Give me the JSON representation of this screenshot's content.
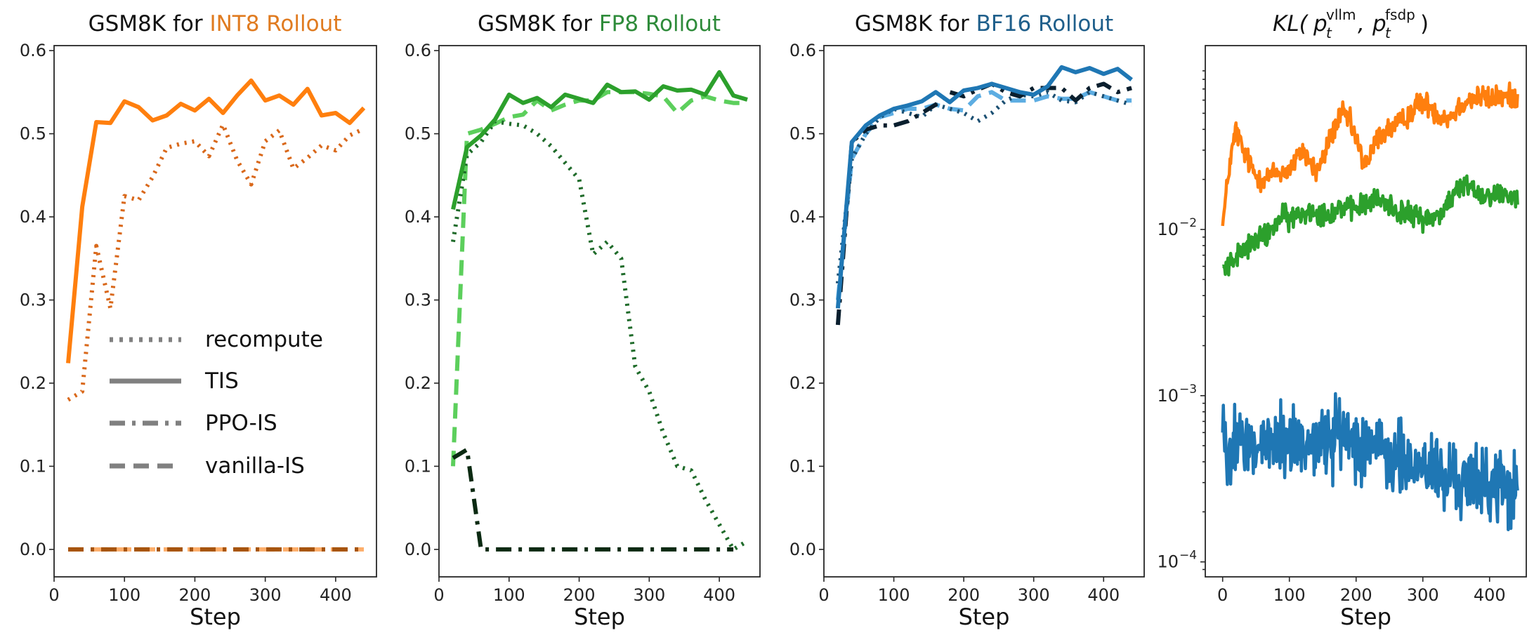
{
  "chart_data": [
    {
      "type": "line",
      "title_prefix": "GSM8K for ",
      "title_highlight": "INT8 Rollout",
      "title_color": "#e07b20",
      "xlabel": "Step",
      "ylabel": "",
      "xlim": [
        0,
        458
      ],
      "ylim": [
        -0.033,
        0.606
      ],
      "xticks": [
        0,
        100,
        200,
        300,
        400
      ],
      "yticks": [
        0.0,
        0.1,
        0.2,
        0.3,
        0.4,
        0.5,
        0.6
      ],
      "yticklabels": [
        "0.0",
        "0.1",
        "0.2",
        "0.3",
        "0.4",
        "0.5",
        "0.6"
      ],
      "legend_placement": "lower-center",
      "legend": [
        {
          "label": "recompute",
          "style": "dotted"
        },
        {
          "label": "TIS",
          "style": "solid"
        },
        {
          "label": "PPO-IS",
          "style": "dashdot"
        },
        {
          "label": "vanilla-IS",
          "style": "dashed"
        }
      ],
      "legend_color": "#808080",
      "x": [
        20,
        40,
        60,
        80,
        100,
        120,
        140,
        160,
        180,
        200,
        220,
        240,
        260,
        280,
        300,
        320,
        340,
        360,
        380,
        400,
        420,
        440
      ],
      "series": [
        {
          "name": "vanilla-IS",
          "style": "dashed",
          "color": "#fdae6b",
          "values": [
            0,
            0,
            0,
            0,
            0,
            0,
            0,
            0,
            0,
            0,
            0,
            0,
            0,
            0,
            0,
            0,
            0,
            0,
            0,
            0,
            0,
            0
          ]
        },
        {
          "name": "recompute",
          "style": "dotted",
          "color": "#d9681a",
          "values": [
            0.18,
            0.19,
            0.365,
            0.29,
            0.425,
            0.42,
            0.448,
            0.483,
            0.488,
            0.491,
            0.473,
            0.511,
            0.468,
            0.439,
            0.491,
            0.504,
            0.458,
            0.471,
            0.486,
            0.48,
            0.498,
            0.506
          ]
        },
        {
          "name": "PPO-IS",
          "style": "dashdot",
          "color": "#a6540d",
          "values": [
            0,
            0,
            0,
            0,
            0,
            0,
            0,
            0,
            0,
            0,
            0,
            0,
            0,
            0,
            0,
            0,
            0,
            0,
            0,
            0,
            0,
            0
          ]
        },
        {
          "name": "TIS",
          "style": "solid",
          "color": "#ff7f0e",
          "values": [
            0.224,
            0.412,
            0.514,
            0.513,
            0.539,
            0.532,
            0.516,
            0.522,
            0.536,
            0.528,
            0.542,
            0.525,
            0.546,
            0.564,
            0.54,
            0.546,
            0.535,
            0.554,
            0.522,
            0.525,
            0.513,
            0.531
          ]
        }
      ]
    },
    {
      "type": "line",
      "title_prefix": "GSM8K for ",
      "title_highlight": "FP8 Rollout",
      "title_color": "#2e8b3a",
      "xlabel": "Step",
      "ylabel": "",
      "xlim": [
        0,
        458
      ],
      "ylim": [
        -0.033,
        0.606
      ],
      "xticks": [
        0,
        100,
        200,
        300,
        400
      ],
      "yticks": [
        0.0,
        0.1,
        0.2,
        0.3,
        0.4,
        0.5,
        0.6
      ],
      "yticklabels": [
        "0.0",
        "0.1",
        "0.2",
        "0.3",
        "0.4",
        "0.5",
        "0.6"
      ],
      "x": [
        20,
        40,
        60,
        80,
        100,
        120,
        140,
        160,
        180,
        200,
        220,
        240,
        260,
        280,
        300,
        320,
        340,
        360,
        380,
        400,
        420,
        440
      ],
      "series": [
        {
          "name": "vanilla-IS",
          "style": "dashed",
          "color": "#5ccf5c",
          "values": [
            0.1,
            0.5,
            0.505,
            0.512,
            0.52,
            0.523,
            0.54,
            0.528,
            0.535,
            0.54,
            0.54,
            0.55,
            0.55,
            0.55,
            0.548,
            0.545,
            0.525,
            0.54,
            0.545,
            0.54,
            0.537,
            0.537
          ]
        },
        {
          "name": "recompute",
          "style": "dotted",
          "color": "#1f6b2a",
          "values": [
            0.37,
            0.475,
            0.49,
            0.515,
            0.512,
            0.51,
            0.5,
            0.485,
            0.465,
            0.445,
            0.355,
            0.37,
            0.35,
            0.22,
            0.19,
            0.14,
            0.1,
            0.095,
            0.06,
            0.03,
            0.0,
            0.01
          ]
        },
        {
          "name": "PPO-IS",
          "style": "dashdot",
          "color": "#0b2a12",
          "values": [
            0.11,
            0.12,
            0.0,
            0.0,
            0.0,
            0.0,
            0.0,
            0.0,
            0.0,
            0.0,
            0.0,
            0.0,
            0.0,
            0.0,
            0.0,
            0.0,
            0.0,
            0.0,
            0.0,
            0.0,
            0.0,
            null
          ]
        },
        {
          "name": "TIS",
          "style": "solid",
          "color": "#2ca02c",
          "values": [
            0.409,
            0.484,
            0.498,
            0.517,
            0.547,
            0.537,
            0.543,
            0.532,
            0.547,
            0.542,
            0.537,
            0.559,
            0.55,
            0.551,
            0.541,
            0.557,
            0.552,
            0.553,
            0.547,
            0.574,
            0.546,
            0.541
          ]
        }
      ]
    },
    {
      "type": "line",
      "title_prefix": "GSM8K for ",
      "title_highlight": "BF16 Rollout",
      "title_color": "#1f5f8b",
      "xlabel": "Step",
      "ylabel": "",
      "xlim": [
        0,
        458
      ],
      "ylim": [
        -0.033,
        0.606
      ],
      "xticks": [
        0,
        100,
        200,
        300,
        400
      ],
      "yticks": [
        0.0,
        0.1,
        0.2,
        0.3,
        0.4,
        0.5,
        0.6
      ],
      "yticklabels": [
        "0.0",
        "0.1",
        "0.2",
        "0.3",
        "0.4",
        "0.5",
        "0.6"
      ],
      "x": [
        20,
        40,
        60,
        80,
        100,
        120,
        140,
        160,
        180,
        200,
        220,
        240,
        260,
        280,
        300,
        320,
        340,
        360,
        380,
        400,
        420,
        440
      ],
      "series": [
        {
          "name": "vanilla-IS",
          "style": "dashed",
          "color": "#5dade2",
          "values": [
            0.3,
            0.47,
            0.5,
            0.52,
            0.525,
            0.53,
            0.53,
            0.535,
            0.53,
            0.528,
            0.545,
            0.55,
            0.54,
            0.54,
            0.54,
            0.545,
            0.542,
            0.542,
            0.55,
            0.545,
            0.54,
            0.54
          ]
        },
        {
          "name": "recompute",
          "style": "dotted",
          "color": "#1b4f72",
          "values": [
            0.32,
            0.47,
            0.5,
            0.52,
            0.53,
            0.525,
            0.52,
            0.535,
            0.53,
            0.525,
            0.515,
            0.525,
            0.54,
            0.547,
            0.545,
            0.55,
            0.54,
            0.538,
            0.55,
            0.545,
            0.54,
            0.535
          ]
        },
        {
          "name": "PPO-IS",
          "style": "dashdot",
          "color": "#0a1f2e",
          "values": [
            0.27,
            0.49,
            0.505,
            0.51,
            0.51,
            0.515,
            0.525,
            0.535,
            0.55,
            0.545,
            0.553,
            0.56,
            0.55,
            0.545,
            0.555,
            0.555,
            0.555,
            0.54,
            0.555,
            0.56,
            0.55,
            0.555
          ]
        },
        {
          "name": "TIS",
          "style": "solid",
          "color": "#1f77b4",
          "values": [
            0.29,
            0.49,
            0.51,
            0.522,
            0.53,
            0.534,
            0.539,
            0.55,
            0.538,
            0.552,
            0.555,
            0.56,
            0.555,
            0.55,
            0.547,
            0.557,
            0.58,
            0.574,
            0.579,
            0.572,
            0.578,
            0.565
          ]
        }
      ]
    },
    {
      "type": "line",
      "title": "KL(p_t^vllm, p_t^fsdp)",
      "title_parts": {
        "kl": "KL(",
        "p": "p",
        "sub": "t",
        "sup1": "vllm",
        "comma": ",",
        "sup2": "fsdp",
        "close": ")"
      },
      "xlabel": "Step",
      "ylabel": "",
      "yscale": "log",
      "xlim": [
        -26,
        455
      ],
      "ylim_log10": [
        -4.09,
        -0.894
      ],
      "xticks": [
        0,
        100,
        200,
        300,
        400
      ],
      "yticks": [
        0.0001,
        0.001,
        0.01
      ],
      "yticklabels": [
        {
          "base": "10",
          "exp": "−4"
        },
        {
          "base": "10",
          "exp": "−3"
        },
        {
          "base": "10",
          "exp": "−2"
        }
      ],
      "x_step_interval": 10,
      "x_start": 0,
      "series": [
        {
          "name": "INT8",
          "color": "#ff7f0e",
          "noise_log10": 0.035,
          "values": [
            0.0105,
            0.024,
            0.04,
            0.03,
            0.025,
            0.021,
            0.02,
            0.021,
            0.022,
            0.022,
            0.023,
            0.026,
            0.03,
            0.026,
            0.022,
            0.026,
            0.035,
            0.043,
            0.05,
            0.045,
            0.035,
            0.026,
            0.026,
            0.035,
            0.038,
            0.04,
            0.042,
            0.045,
            0.05,
            0.055,
            0.058,
            0.056,
            0.05,
            0.048,
            0.047,
            0.052,
            0.058,
            0.06,
            0.062,
            0.063,
            0.06,
            0.063,
            0.062,
            0.063,
            0.064
          ]
        },
        {
          "name": "FP8",
          "color": "#2ca02c",
          "noise_log10": 0.035,
          "values": [
            0.006,
            0.0062,
            0.0068,
            0.0075,
            0.008,
            0.0085,
            0.009,
            0.0095,
            0.011,
            0.012,
            0.0115,
            0.012,
            0.0125,
            0.013,
            0.013,
            0.0125,
            0.0125,
            0.013,
            0.014,
            0.013,
            0.0135,
            0.014,
            0.0145,
            0.015,
            0.0148,
            0.014,
            0.013,
            0.0128,
            0.012,
            0.0122,
            0.0118,
            0.0115,
            0.012,
            0.013,
            0.015,
            0.017,
            0.018,
            0.019,
            0.017,
            0.016,
            0.0165,
            0.016,
            0.0165,
            0.016,
            0.0158
          ]
        },
        {
          "name": "BF16",
          "color": "#1f77b4",
          "noise_log10": 0.11,
          "values": [
            0.0006,
            0.00055,
            0.0005,
            0.00055,
            0.0005,
            0.00048,
            0.0005,
            0.00052,
            0.0005,
            0.00055,
            0.00052,
            0.00055,
            0.0005,
            0.00055,
            0.00052,
            0.0005,
            0.00055,
            0.00058,
            0.0006,
            0.00058,
            0.00055,
            0.00052,
            0.00055,
            0.00048,
            0.00045,
            0.0004,
            0.00042,
            0.0004,
            0.00038,
            0.00035,
            0.0004,
            0.00038,
            0.00035,
            0.0003,
            0.00032,
            0.00033,
            0.0003,
            0.0003,
            0.00028,
            0.00032,
            0.0003,
            0.00028,
            0.0003,
            0.00025,
            0.00028
          ]
        }
      ]
    }
  ]
}
